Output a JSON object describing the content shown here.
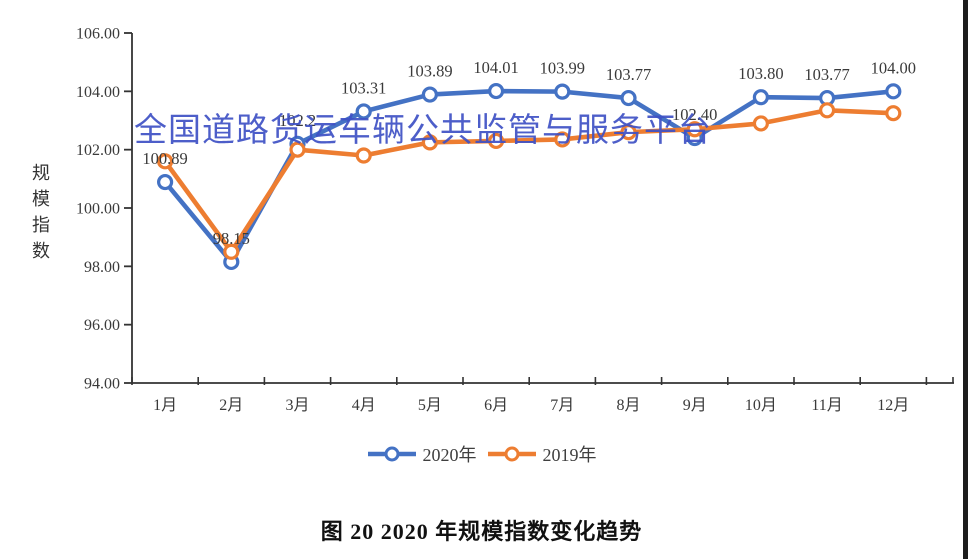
{
  "watermark": "全国道路货运车辆公共监管与服务平台",
  "figure_title": "图 20 2020 年规模指数变化趋势",
  "y_axis_title": "规模指数",
  "chart_data": {
    "type": "line",
    "categories": [
      "1月",
      "2月",
      "3月",
      "4月",
      "5月",
      "6月",
      "7月",
      "8月",
      "9月",
      "10月",
      "11月",
      "12月"
    ],
    "series": [
      {
        "name": "2020年",
        "color": "#4472C4",
        "values": [
          100.89,
          98.15,
          102.2,
          103.31,
          103.89,
          104.01,
          103.99,
          103.77,
          102.4,
          103.8,
          103.77,
          104.0
        ],
        "point_labels": [
          "100.89",
          "98.15",
          "102.2",
          "103.31",
          "103.89",
          "104.01",
          "103.99",
          "103.77",
          "102.40",
          "103.80",
          "103.77",
          "104.00"
        ]
      },
      {
        "name": "2019年",
        "color": "#ED7D31",
        "values": [
          101.6,
          98.5,
          102.0,
          101.8,
          102.25,
          102.3,
          102.35,
          102.6,
          102.7,
          102.9,
          103.35,
          103.25
        ],
        "point_labels": null
      }
    ],
    "ylim": [
      94,
      106
    ],
    "ytick_labels": [
      "94.00",
      "96.00",
      "98.00",
      "100.00",
      "102.00",
      "104.00",
      "106.00"
    ],
    "xlabel": "",
    "ylabel": "规模指数",
    "grid": false,
    "legend_position": "bottom",
    "marker": "circle-open",
    "note": ""
  }
}
